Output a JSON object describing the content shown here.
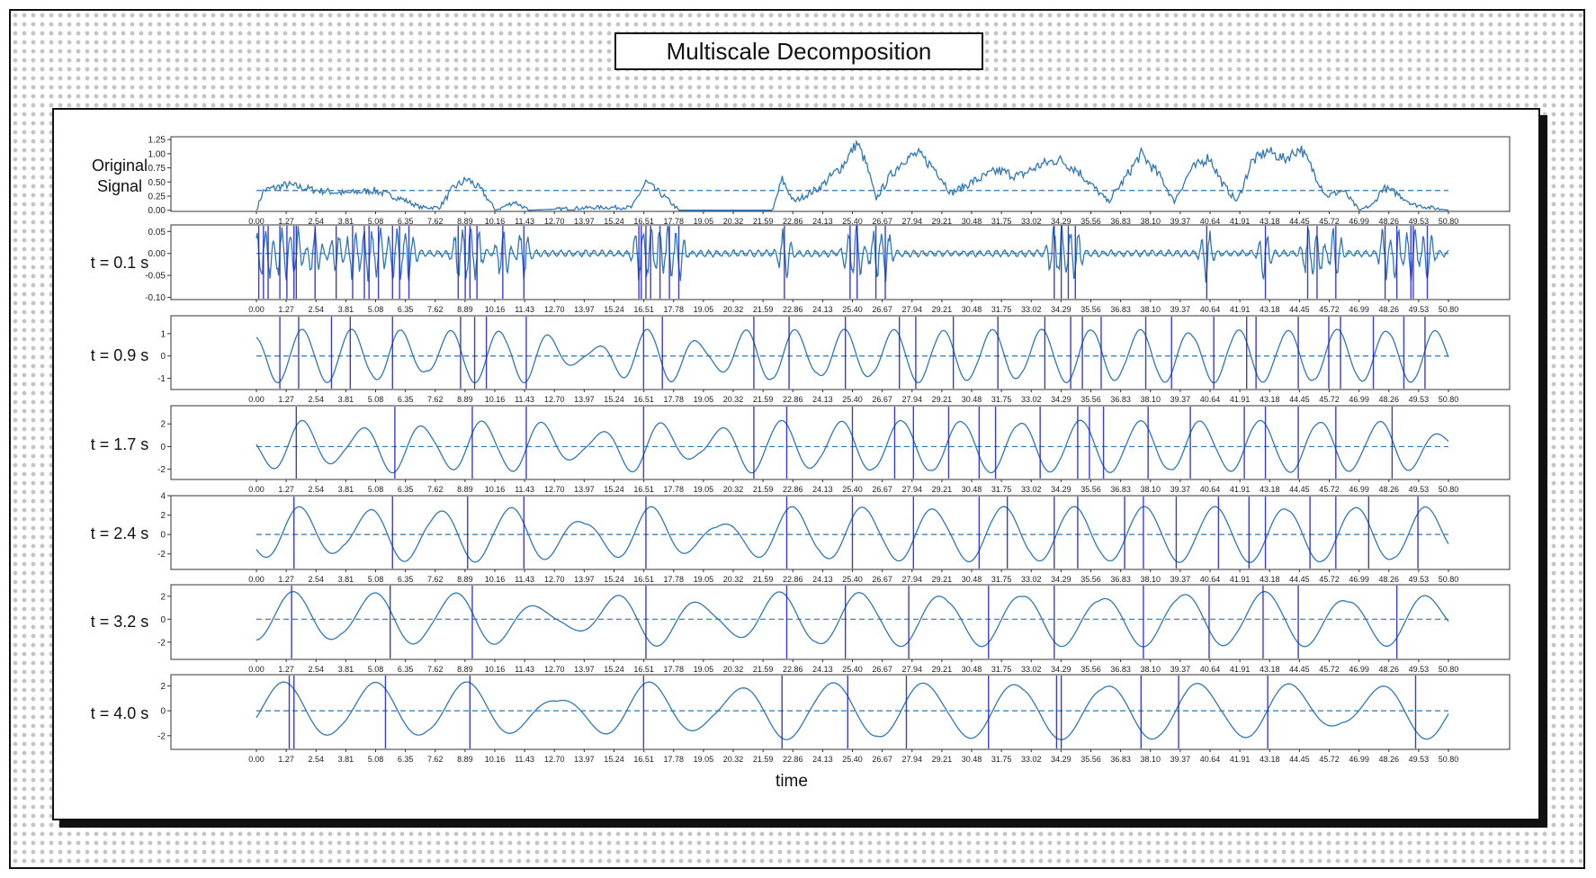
{
  "title": "Multiscale Decomposition",
  "xlabel": "time",
  "colors": {
    "signal": "#2f78b5",
    "marker": "#1a1ad2",
    "frame": "#111111"
  },
  "chart_data": {
    "type": "line",
    "x_ticks": [
      "0.00",
      "1.27",
      "2.54",
      "3.81",
      "5.08",
      "6.35",
      "7.62",
      "8.89",
      "10.16",
      "11.43",
      "12.70",
      "13.97",
      "15.24",
      "16.51",
      "17.78",
      "19.05",
      "20.32",
      "21.59",
      "22.86",
      "24.13",
      "25.40",
      "26.67",
      "27.94",
      "29.21",
      "30.48",
      "31.75",
      "33.02",
      "34.29",
      "35.56",
      "36.83",
      "38.10",
      "39.37",
      "40.64",
      "41.91",
      "43.18",
      "44.45",
      "45.72",
      "46.99",
      "48.26",
      "49.53",
      "50.80"
    ],
    "xlim": [
      0,
      50.8
    ],
    "panels": [
      {
        "label": "Original Signal",
        "ylim": [
          -0.02,
          1.3
        ],
        "yticks": [
          "0.00",
          "0.25",
          "0.50",
          "0.75",
          "1.00",
          "1.25"
        ],
        "ytick_values": [
          0,
          0.25,
          0.5,
          0.75,
          1.0,
          1.25
        ],
        "reference": 0.35,
        "signal": [
          [
            0,
            0.0
          ],
          [
            0.3,
            0.35
          ],
          [
            1.3,
            0.45
          ],
          [
            2.6,
            0.35
          ],
          [
            3.8,
            0.3
          ],
          [
            5.0,
            0.35
          ],
          [
            6.2,
            0.2
          ],
          [
            7.0,
            0.05
          ],
          [
            7.8,
            0.05
          ],
          [
            8.4,
            0.4
          ],
          [
            9.0,
            0.55
          ],
          [
            9.6,
            0.35
          ],
          [
            10.2,
            0.0
          ],
          [
            11.0,
            0.15
          ],
          [
            11.6,
            0.0
          ],
          [
            14.5,
            0.05
          ],
          [
            16.0,
            0.05
          ],
          [
            16.6,
            0.5
          ],
          [
            17.5,
            0.2
          ],
          [
            18.0,
            0.0
          ],
          [
            20.5,
            0.0
          ],
          [
            22.0,
            0.0
          ],
          [
            22.4,
            0.55
          ],
          [
            22.9,
            0.15
          ],
          [
            24.0,
            0.4
          ],
          [
            25.0,
            0.8
          ],
          [
            25.6,
            1.2
          ],
          [
            26.0,
            0.8
          ],
          [
            26.4,
            0.2
          ],
          [
            27.0,
            0.6
          ],
          [
            27.6,
            0.9
          ],
          [
            28.2,
            1.0
          ],
          [
            29.0,
            0.7
          ],
          [
            29.6,
            0.3
          ],
          [
            30.5,
            0.5
          ],
          [
            31.6,
            0.7
          ],
          [
            32.5,
            0.6
          ],
          [
            33.4,
            0.8
          ],
          [
            34.2,
            0.9
          ],
          [
            35.0,
            0.7
          ],
          [
            35.7,
            0.4
          ],
          [
            36.3,
            0.15
          ],
          [
            37.0,
            0.55
          ],
          [
            37.7,
            1.0
          ],
          [
            38.6,
            0.55
          ],
          [
            39.1,
            0.15
          ],
          [
            39.8,
            0.7
          ],
          [
            40.6,
            0.95
          ],
          [
            41.2,
            0.45
          ],
          [
            41.8,
            0.15
          ],
          [
            42.4,
            0.85
          ],
          [
            43.1,
            1.05
          ],
          [
            43.8,
            0.9
          ],
          [
            44.5,
            1.1
          ],
          [
            45.1,
            0.65
          ],
          [
            45.6,
            0.25
          ],
          [
            46.3,
            0.35
          ],
          [
            47.0,
            0.0
          ],
          [
            47.6,
            0.1
          ],
          [
            48.0,
            0.4
          ],
          [
            48.6,
            0.3
          ],
          [
            49.3,
            0.1
          ],
          [
            50.0,
            0.05
          ],
          [
            50.8,
            0.0
          ]
        ]
      },
      {
        "label": "t = 0.1 s",
        "ylim": [
          -0.105,
          0.065
        ],
        "yticks": [
          "0.05",
          "0.00",
          "-0.05",
          "-0.10"
        ],
        "ytick_values": [
          0.05,
          0.0,
          -0.05,
          -0.1
        ],
        "reference": 0,
        "markers": [
          0.1,
          0.3,
          0.5,
          1.0,
          1.3,
          1.6,
          1.7,
          2.5,
          3.4,
          4.1,
          4.6,
          4.8,
          5.2,
          5.8,
          6.1,
          6.5,
          8.6,
          8.9,
          9.1,
          9.4,
          10.5,
          11.4,
          16.3,
          16.4,
          16.6,
          16.8,
          17.2,
          17.6,
          18.0,
          22.5,
          25.3,
          25.6,
          26.4,
          26.8,
          34.0,
          34.3,
          34.6,
          34.9,
          40.5,
          43.0,
          44.8,
          45.2,
          46.0,
          48.1,
          48.6,
          49.2,
          49.3,
          49.9
        ]
      },
      {
        "label": "t = 0.9 s",
        "ylim": [
          -1.5,
          1.8
        ],
        "yticks": [
          "1",
          "0",
          "-1"
        ],
        "ytick_values": [
          1,
          0,
          -1
        ],
        "reference": 0,
        "markers": [
          1.0,
          1.8,
          3.2,
          4.0,
          5.8,
          8.7,
          9.3,
          9.8,
          11.5,
          16.5,
          17.3,
          21.2,
          22.7,
          25.1,
          27.4,
          28.1,
          29.7,
          31.6,
          33.6,
          34.7,
          35.2,
          36.0,
          37.9,
          39.0,
          40.8,
          42.2,
          42.6,
          44.4,
          45.7,
          46.2,
          47.6,
          48.9,
          49.8
        ]
      },
      {
        "label": "t = 1.7 s",
        "ylim": [
          -2.9,
          3.6
        ],
        "yticks": [
          "2",
          "0",
          "-2"
        ],
        "ytick_values": [
          2,
          0,
          -2
        ],
        "reference": 0,
        "markers": [
          1.7,
          5.9,
          9.2,
          11.5,
          16.5,
          21.2,
          22.6,
          25.4,
          27.2,
          28.0,
          29.5,
          30.8,
          31.5,
          33.4,
          35.0,
          35.5,
          36.1,
          38.0,
          39.8,
          42.1,
          43.0,
          44.4,
          46.0,
          48.4
        ]
      },
      {
        "label": "t = 2.4 s",
        "ylim": [
          -3.6,
          4.0
        ],
        "yticks": [
          "4",
          "2",
          "0",
          "-2"
        ],
        "ytick_values": [
          4,
          2,
          0,
          -2
        ],
        "reference": 0,
        "markers": [
          1.6,
          5.8,
          9.0,
          11.4,
          16.6,
          22.6,
          25.4,
          28.0,
          30.8,
          32.0,
          34.0,
          35.0,
          37.0,
          37.8,
          39.2,
          41.0,
          42.3,
          43.0,
          44.9,
          46.0,
          47.4,
          49.5
        ]
      },
      {
        "label": "t = 3.2 s",
        "ylim": [
          -3.5,
          3.0
        ],
        "yticks": [
          "2",
          "0",
          "-2"
        ],
        "ytick_values": [
          2,
          0,
          -2
        ],
        "reference": 0,
        "markers": [
          1.5,
          5.7,
          9.2,
          16.6,
          22.6,
          25.1,
          27.8,
          31.2,
          34.0,
          37.8,
          40.6,
          42.9,
          44.4,
          48.6
        ]
      },
      {
        "label": "t = 4.0 s",
        "ylim": [
          -3.1,
          2.9
        ],
        "yticks": [
          "2",
          "0",
          "-2"
        ],
        "ytick_values": [
          2,
          0,
          -2
        ],
        "reference": 0,
        "markers": [
          1.4,
          1.6,
          5.5,
          9.1,
          16.5,
          22.4,
          25.2,
          27.7,
          31.2,
          34.1,
          34.3,
          37.7,
          39.3,
          43.1,
          49.4
        ]
      }
    ]
  }
}
